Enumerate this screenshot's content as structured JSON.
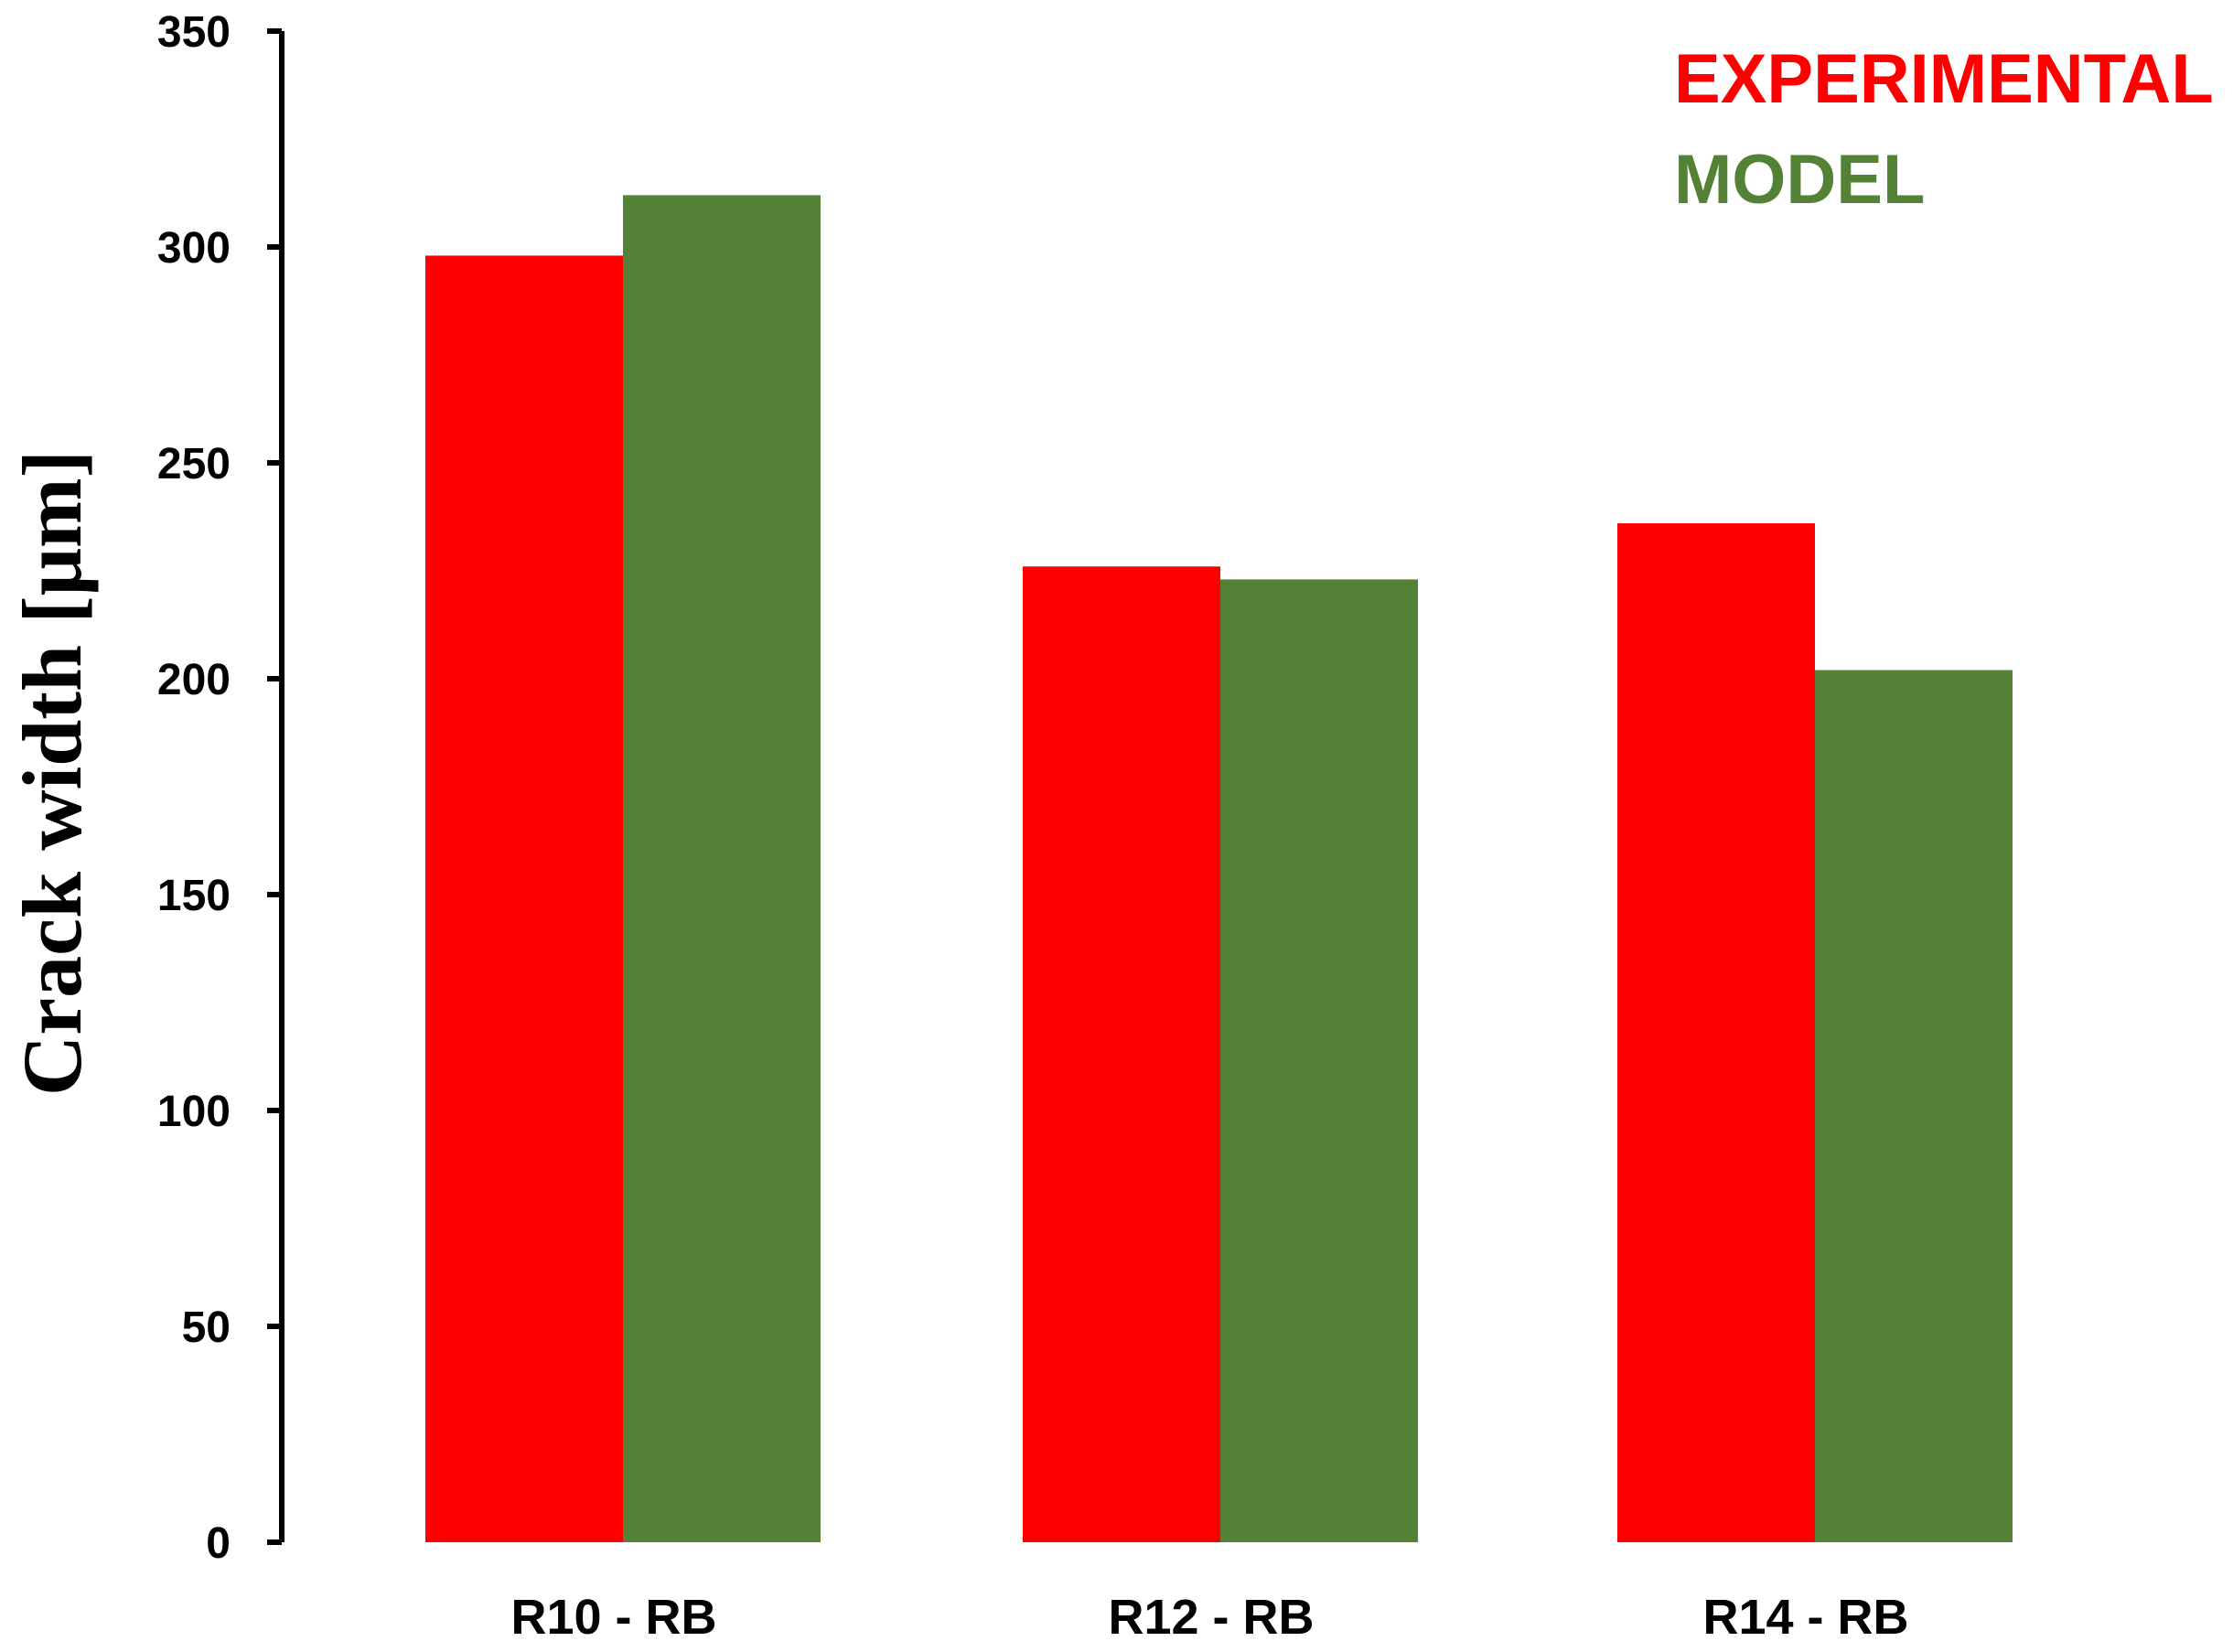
{
  "chart_data": {
    "type": "bar",
    "title": "",
    "xlabel": "",
    "ylabel": "Crack width [μm]",
    "ylim": [
      0,
      350
    ],
    "yticks": [
      0,
      50,
      100,
      150,
      200,
      250,
      300,
      350
    ],
    "grid": false,
    "legend_position": "top-right",
    "categories": [
      "R10 - RB",
      "R12 - RB",
      "R14 - RB"
    ],
    "series": [
      {
        "name": "EXPERIMENTAL",
        "color": "#ff0000",
        "values": [
          298,
          226,
          236
        ]
      },
      {
        "name": "MODEL",
        "color": "#538135",
        "values": [
          312,
          223,
          202
        ]
      }
    ]
  }
}
